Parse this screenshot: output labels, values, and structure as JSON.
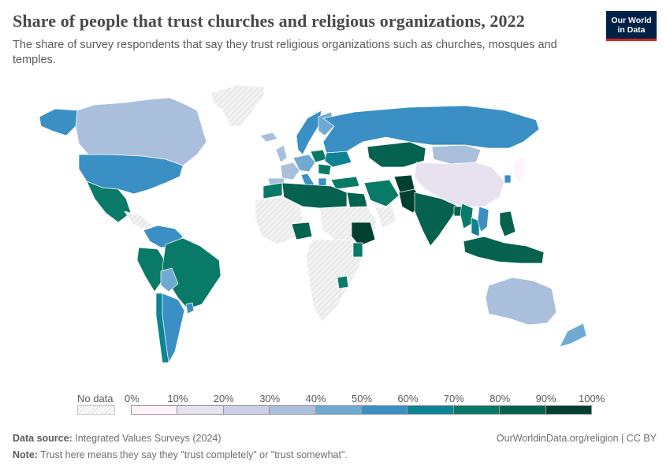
{
  "header": {
    "title": "Share of people that trust churches and religious organizations, 2022",
    "subtitle": "The share of survey respondents that say they trust religious organizations such as churches, mosques and temples."
  },
  "logo": {
    "line1": "Our World",
    "line2": "in Data",
    "bg": "#002147",
    "accent": "#ce261e"
  },
  "legend": {
    "no_data_label": "No data",
    "ticks": [
      "0%",
      "10%",
      "20%",
      "30%",
      "40%",
      "50%",
      "60%",
      "70%",
      "80%",
      "90%",
      "100%"
    ],
    "bins": [
      {
        "range": "0-10",
        "color": "#fdf5fb"
      },
      {
        "range": "10-20",
        "color": "#e7e1f0"
      },
      {
        "range": "20-30",
        "color": "#cdcfe6"
      },
      {
        "range": "30-40",
        "color": "#a9bfdc"
      },
      {
        "range": "40-50",
        "color": "#6faad2"
      },
      {
        "range": "50-60",
        "color": "#3a8fc4"
      },
      {
        "range": "60-70",
        "color": "#0e8393"
      },
      {
        "range": "70-80",
        "color": "#0a7a68"
      },
      {
        "range": "80-90",
        "color": "#05624f"
      },
      {
        "range": "90-100",
        "color": "#033f30"
      }
    ]
  },
  "map_colors": {
    "ocean": "#ffffff",
    "border": "#ffffff",
    "no_data": "#f2f2f2",
    "hatch": "#d4d4d4"
  },
  "chart_data": {
    "type": "choropleth",
    "title": "Share of people that trust churches and religious organizations, 2022",
    "unit": "%",
    "regions": [
      {
        "name": "Canada",
        "bin": "30-40"
      },
      {
        "name": "United States",
        "bin": "50-60"
      },
      {
        "name": "Alaska",
        "bin": "50-60"
      },
      {
        "name": "Greenland",
        "bin": "no data"
      },
      {
        "name": "Mexico",
        "bin": "70-80"
      },
      {
        "name": "Venezuela/Colombia",
        "bin": "50-60"
      },
      {
        "name": "Peru",
        "bin": "70-80"
      },
      {
        "name": "Brazil",
        "bin": "70-80"
      },
      {
        "name": "Bolivia",
        "bin": "40-50"
      },
      {
        "name": "Argentina",
        "bin": "50-60"
      },
      {
        "name": "Chile",
        "bin": "60-70"
      },
      {
        "name": "Uruguay",
        "bin": "50-60"
      },
      {
        "name": "Iceland",
        "bin": "30-40"
      },
      {
        "name": "Scandinavia",
        "bin": "50-60"
      },
      {
        "name": "Finland",
        "bin": "40-50"
      },
      {
        "name": "UK",
        "bin": "30-40"
      },
      {
        "name": "France",
        "bin": "30-40"
      },
      {
        "name": "Spain",
        "bin": "30-40"
      },
      {
        "name": "Central Europe",
        "bin": "40-50"
      },
      {
        "name": "Italy",
        "bin": "50-60"
      },
      {
        "name": "Poland",
        "bin": "70-80"
      },
      {
        "name": "Ukraine",
        "bin": "60-70"
      },
      {
        "name": "Romania",
        "bin": "70-80"
      },
      {
        "name": "Greece",
        "bin": "50-60"
      },
      {
        "name": "Russia",
        "bin": "50-60"
      },
      {
        "name": "Kazakhstan",
        "bin": "80-90"
      },
      {
        "name": "Mongolia",
        "bin": "30-40"
      },
      {
        "name": "China",
        "bin": "10-20"
      },
      {
        "name": "Japan",
        "bin": "0-10"
      },
      {
        "name": "South Korea",
        "bin": "50-60"
      },
      {
        "name": "Turkey",
        "bin": "70-80"
      },
      {
        "name": "Iran",
        "bin": "70-80"
      },
      {
        "name": "Afghanistan",
        "bin": "90-100"
      },
      {
        "name": "Pakistan",
        "bin": "90-100"
      },
      {
        "name": "India",
        "bin": "80-90"
      },
      {
        "name": "Bangladesh",
        "bin": "80-90"
      },
      {
        "name": "Myanmar",
        "bin": "70-80"
      },
      {
        "name": "Thailand",
        "bin": "60-70"
      },
      {
        "name": "Vietnam",
        "bin": "50-60"
      },
      {
        "name": "Philippines",
        "bin": "80-90"
      },
      {
        "name": "Indonesia",
        "bin": "80-90"
      },
      {
        "name": "Morocco",
        "bin": "70-80"
      },
      {
        "name": "Algeria/Libya",
        "bin": "80-90"
      },
      {
        "name": "Egypt",
        "bin": "80-90"
      },
      {
        "name": "Nigeria",
        "bin": "80-90"
      },
      {
        "name": "Ethiopia",
        "bin": "90-100"
      },
      {
        "name": "Kenya",
        "bin": "70-80"
      },
      {
        "name": "Zimbabwe",
        "bin": "70-80"
      },
      {
        "name": "Australia",
        "bin": "30-40"
      },
      {
        "name": "New Zealand",
        "bin": "40-50"
      }
    ]
  },
  "footer": {
    "source_label": "Data source:",
    "source_text": "Integrated Values Surveys (2024)",
    "url_text": "OurWorldinData.org/religion | CC BY",
    "note_label": "Note:",
    "note_text": "Trust here means they say they \"trust completely\" or \"trust somewhat\"."
  }
}
